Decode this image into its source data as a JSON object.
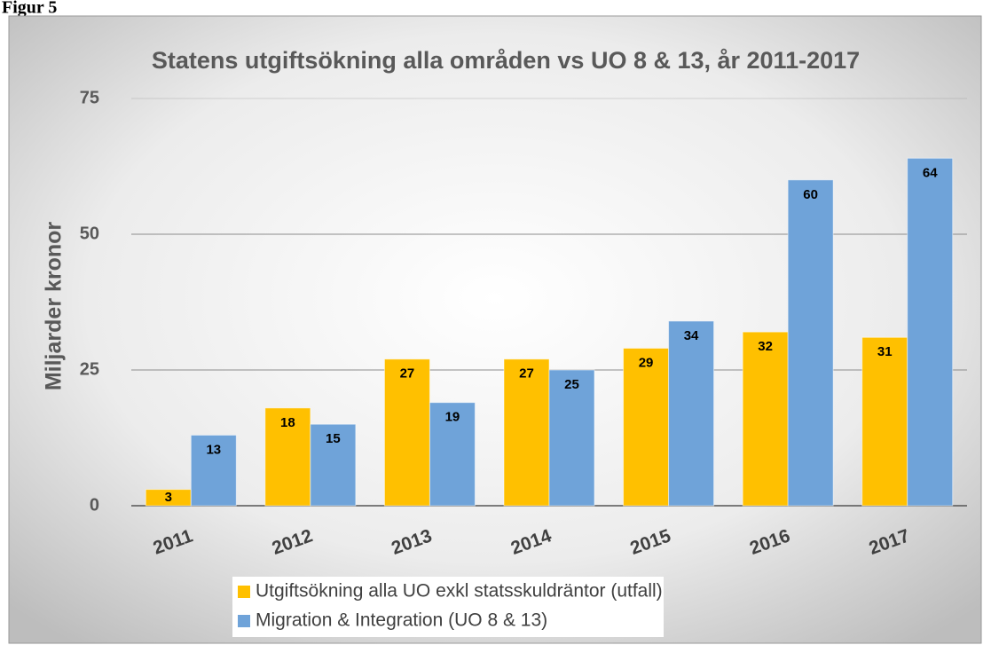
{
  "figure_label": "Figur 5",
  "chart_data": {
    "type": "bar",
    "title": "Statens utgiftsökning alla områden vs UO 8 & 13, år 2011-2017",
    "y_label": "Miljarder kronor",
    "categories": [
      "2011",
      "2012",
      "2013",
      "2014",
      "2015",
      "2016",
      "2017"
    ],
    "series": [
      {
        "name": "Utgiftsökning alla UO exkl statsskuldräntor (utfall)",
        "color": "#FFC000",
        "values": [
          3,
          18,
          27,
          27,
          29,
          32,
          31
        ]
      },
      {
        "name": "Migration & Integration (UO 8 & 13)",
        "color": "#6FA3D9",
        "values": [
          13,
          15,
          19,
          25,
          34,
          60,
          64
        ]
      }
    ],
    "ylim": [
      0,
      75
    ],
    "yticks": [
      0,
      25,
      50,
      75
    ],
    "grid": true,
    "legend": "bottom"
  }
}
